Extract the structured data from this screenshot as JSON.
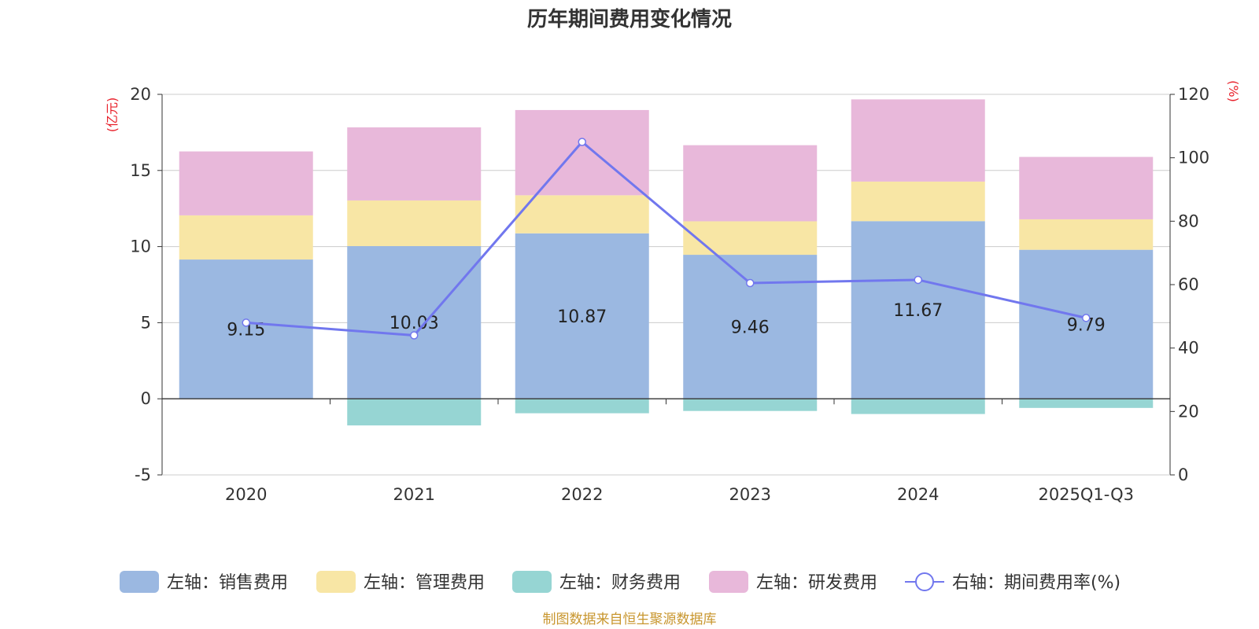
{
  "chart_data": {
    "type": "bar",
    "title": "历年期间费用变化情况",
    "categories": [
      "2020",
      "2021",
      "2022",
      "2023",
      "2024",
      "2025Q1-Q3"
    ],
    "left_axis": {
      "unit": "(亿元)",
      "ylim": [
        -5,
        20
      ],
      "ticks": [
        -5,
        0,
        5,
        10,
        15,
        20
      ]
    },
    "right_axis": {
      "unit": "(%)",
      "ylim": [
        0,
        120
      ],
      "ticks": [
        0,
        20,
        40,
        60,
        80,
        100,
        120
      ]
    },
    "series": [
      {
        "name": "左轴：销售费用",
        "axis": "left",
        "type": "bar",
        "color": "#9bb8e1",
        "values": [
          9.15,
          10.03,
          10.87,
          9.46,
          11.67,
          9.79
        ]
      },
      {
        "name": "左轴：管理费用",
        "axis": "left",
        "type": "bar",
        "color": "#f8e6a5",
        "values": [
          2.9,
          3.0,
          2.5,
          2.2,
          2.6,
          2.0
        ]
      },
      {
        "name": "左轴：财务费用",
        "axis": "left",
        "type": "bar",
        "color": "#96d5d3",
        "values": [
          0.0,
          -1.75,
          -0.95,
          -0.8,
          -1.0,
          -0.6
        ]
      },
      {
        "name": "左轴：研发费用",
        "axis": "left",
        "type": "bar",
        "color": "#e8b8da",
        "values": [
          4.2,
          4.8,
          5.6,
          5.0,
          5.4,
          4.1
        ]
      },
      {
        "name": "右轴：期间费用率(%)",
        "axis": "right",
        "type": "line",
        "color": "#7177ee",
        "values": [
          48,
          44,
          105,
          60.5,
          61.5,
          49.5
        ]
      }
    ],
    "data_labels": [
      "9.15",
      "10.03",
      "10.87",
      "9.46",
      "11.67",
      "9.79"
    ],
    "grid": true,
    "legend": "bottom-center"
  },
  "source": "制图数据来自恒生聚源数据库"
}
